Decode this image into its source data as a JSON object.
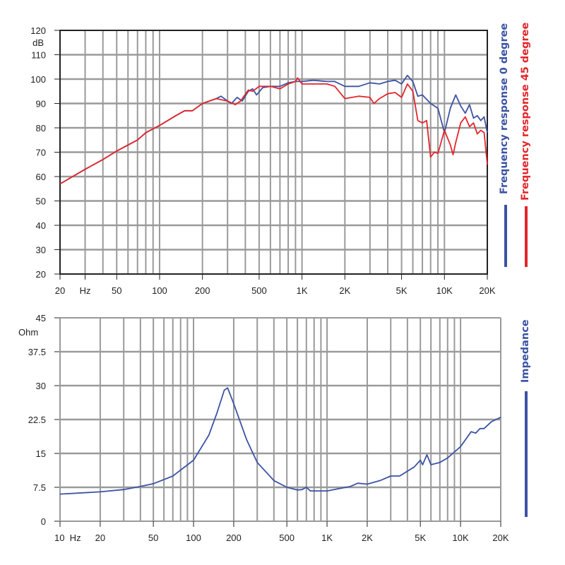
{
  "colors": {
    "blue": "#3b53a4",
    "red": "#e4262b",
    "grid": "#9a9a9a",
    "frame": "#222222"
  },
  "chart_data": [
    {
      "type": "line",
      "x_scale": "log",
      "xlim": [
        20,
        20000
      ],
      "ylim": [
        20,
        120
      ],
      "ylabel": "dB",
      "grid": true,
      "legend_placement": "right",
      "x_tick_labels": [
        {
          "x": 20,
          "label": "20"
        },
        {
          "x": 30,
          "label": "Hz"
        },
        {
          "x": 50,
          "label": "50"
        },
        {
          "x": 100,
          "label": "100"
        },
        {
          "x": 200,
          "label": "200"
        },
        {
          "x": 500,
          "label": "500"
        },
        {
          "x": 1000,
          "label": "1K"
        },
        {
          "x": 2000,
          "label": "2K"
        },
        {
          "x": 5000,
          "label": "5K"
        },
        {
          "x": 10000,
          "label": "10K"
        },
        {
          "x": 20000,
          "label": "20K"
        }
      ],
      "y_ticks": [
        {
          "y": 120,
          "label": "120"
        },
        {
          "y": 110,
          "label": "110"
        },
        {
          "y": 100,
          "label": "100"
        },
        {
          "y": 90,
          "label": "90"
        },
        {
          "y": 80,
          "label": "80"
        },
        {
          "y": 70,
          "label": "70"
        },
        {
          "y": 60,
          "label": "60"
        },
        {
          "y": 50,
          "label": "50"
        },
        {
          "y": 40,
          "label": "40"
        },
        {
          "y": 30,
          "label": "30"
        },
        {
          "y": 20,
          "label": "20"
        }
      ],
      "series": [
        {
          "name": "Frequency response 0 degree",
          "color": "#3b53a4",
          "x": [
            20,
            30,
            40,
            50,
            70,
            80,
            100,
            130,
            150,
            170,
            200,
            250,
            270,
            300,
            320,
            350,
            380,
            420,
            450,
            480,
            530,
            600,
            700,
            800,
            900,
            1000,
            1200,
            1500,
            1700,
            2000,
            2500,
            3000,
            3500,
            4000,
            4500,
            5000,
            5500,
            6000,
            6500,
            7000,
            8000,
            9000,
            10000,
            11000,
            12000,
            13000,
            14000,
            15000,
            16000,
            17000,
            18000,
            19000,
            20000
          ],
          "y": [
            57,
            63,
            67,
            70.5,
            75,
            78,
            81,
            85,
            87,
            87,
            90,
            92,
            93,
            91,
            90,
            92.5,
            91,
            95,
            96,
            93.5,
            96.5,
            97,
            97,
            98.5,
            99,
            99,
            99.5,
            99,
            99,
            97,
            97,
            98.5,
            98,
            99,
            99.5,
            98,
            101.5,
            99,
            93,
            93.5,
            90,
            88,
            78,
            88,
            93.5,
            89,
            86,
            89.5,
            84,
            85,
            83,
            84.5,
            78
          ]
        },
        {
          "name": "Frequency response 45 degree",
          "color": "#e4262b",
          "x": [
            20,
            30,
            40,
            50,
            70,
            80,
            100,
            130,
            150,
            170,
            200,
            250,
            300,
            340,
            370,
            420,
            450,
            500,
            600,
            700,
            800,
            900,
            930,
            1000,
            1200,
            1500,
            1700,
            2000,
            2500,
            3000,
            3200,
            3500,
            4000,
            4500,
            5000,
            5500,
            6000,
            6500,
            7000,
            7500,
            8000,
            8500,
            9000,
            10000,
            11000,
            11500,
            12000,
            13000,
            14000,
            15000,
            16000,
            17000,
            18000,
            19000,
            20000
          ],
          "y": [
            57,
            63,
            67,
            70.5,
            75,
            78,
            81,
            85,
            87,
            87,
            90,
            92,
            91,
            89.5,
            91,
            95.5,
            95,
            97,
            97,
            96,
            98,
            99,
            100.5,
            98,
            98,
            98,
            97,
            92,
            93,
            92.5,
            90,
            92,
            94,
            94.5,
            92.5,
            98,
            95,
            83,
            82,
            83,
            68,
            70,
            69.5,
            79,
            73,
            69,
            74,
            82,
            84.5,
            80.5,
            82,
            77.5,
            79,
            78,
            65
          ]
        }
      ]
    },
    {
      "type": "line",
      "x_scale": "log",
      "xlim": [
        10,
        20000
      ],
      "ylim": [
        0,
        45
      ],
      "ylabel": "Ohm",
      "grid": true,
      "legend_placement": "right",
      "x_tick_labels": [
        {
          "x": 10,
          "label": "10  Hz"
        },
        {
          "x": 20,
          "label": "20"
        },
        {
          "x": 50,
          "label": "50"
        },
        {
          "x": 100,
          "label": "100"
        },
        {
          "x": 200,
          "label": "200"
        },
        {
          "x": 500,
          "label": "500"
        },
        {
          "x": 1000,
          "label": "1K"
        },
        {
          "x": 2000,
          "label": "2K"
        },
        {
          "x": 5000,
          "label": "5K"
        },
        {
          "x": 10000,
          "label": "10K"
        },
        {
          "x": 20000,
          "label": "20K"
        }
      ],
      "y_ticks": [
        {
          "y": 45,
          "label": "45"
        },
        {
          "y": 37.5,
          "label": "37.5"
        },
        {
          "y": 30,
          "label": "30"
        },
        {
          "y": 22.5,
          "label": "22.5"
        },
        {
          "y": 15,
          "label": "15"
        },
        {
          "y": 7.5,
          "label": "7.5"
        },
        {
          "y": 0,
          "label": "0"
        }
      ],
      "series": [
        {
          "name": "Impedance",
          "color": "#3b53a4",
          "x": [
            10,
            20,
            30,
            40,
            50,
            70,
            100,
            130,
            150,
            170,
            180,
            200,
            250,
            300,
            400,
            500,
            600,
            650,
            700,
            750,
            1000,
            1500,
            1700,
            2000,
            2500,
            3000,
            3500,
            4500,
            5000,
            5200,
            5600,
            6000,
            7000,
            8000,
            10000,
            12000,
            13000,
            14000,
            15000,
            17000,
            20000
          ],
          "y": [
            6,
            6.5,
            7,
            7.7,
            8.3,
            10,
            13.5,
            19,
            24,
            29,
            29.5,
            26,
            18,
            13,
            9,
            7.5,
            6.9,
            7,
            7.5,
            6.7,
            6.7,
            7.7,
            8.4,
            8.2,
            9,
            10,
            10,
            12,
            13.5,
            12.5,
            14.7,
            12.5,
            13,
            14,
            16.5,
            19.8,
            19.5,
            20.5,
            20.5,
            22,
            23
          ]
        }
      ]
    }
  ]
}
